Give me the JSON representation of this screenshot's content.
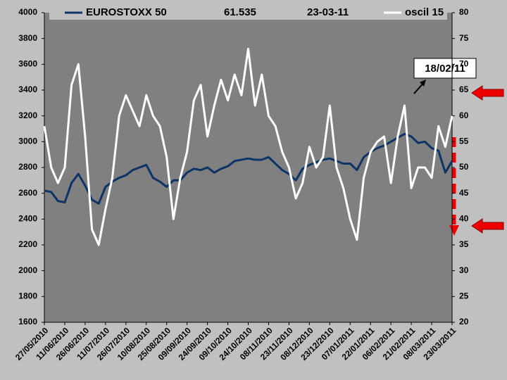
{
  "chart_data": {
    "type": "line",
    "categories": [
      "27/05/2010",
      null,
      null,
      "11/06/2010",
      null,
      null,
      "26/06/2010",
      null,
      null,
      "11/07/2010",
      null,
      null,
      "26/07/2010",
      null,
      null,
      "10/08/2010",
      null,
      null,
      "25/08/2010",
      null,
      null,
      "09/09/2010",
      null,
      null,
      "24/09/2010",
      null,
      null,
      "09/10/2010",
      null,
      null,
      "24/10/2010",
      null,
      null,
      "08/11/2010",
      null,
      null,
      "23/11/2010",
      null,
      null,
      "08/12/2010",
      null,
      null,
      "23/12/2010",
      null,
      null,
      "07/01/2011",
      null,
      null,
      "22/01/2011",
      null,
      null,
      "06/02/2011",
      null,
      null,
      "21/02/2011",
      null,
      null,
      "08/03/2011",
      null,
      null,
      "23/03/2011"
    ],
    "series": [
      {
        "name": "EUROSTOXX 50",
        "color": "#0d3466",
        "values": [
          2620,
          2610,
          2540,
          2530,
          2680,
          2750,
          2660,
          2550,
          2520,
          2650,
          2690,
          2720,
          2740,
          2780,
          2800,
          2820,
          2720,
          2690,
          2650,
          2700,
          2700,
          2760,
          2790,
          2780,
          2800,
          2760,
          2790,
          2810,
          2850,
          2860,
          2870,
          2860,
          2860,
          2880,
          2830,
          2780,
          2750,
          2700,
          2790,
          2820,
          2840,
          2860,
          2870,
          2850,
          2830,
          2830,
          2780,
          2880,
          2920,
          2950,
          2970,
          3000,
          3030,
          3060,
          3040,
          2990,
          3000,
          2950,
          2930,
          2760,
          2850
        ]
      },
      {
        "name": "oscil 15",
        "color": "#ffffff",
        "axis": "y2",
        "values": [
          58,
          50,
          47,
          50,
          66,
          70,
          56,
          38,
          35,
          42,
          48,
          60,
          64,
          61,
          58,
          64,
          60,
          58,
          52,
          40,
          48,
          53,
          63,
          66,
          56,
          62,
          67,
          63,
          68,
          64,
          73,
          62,
          68,
          60,
          58,
          53,
          50,
          44,
          47,
          54,
          50,
          52,
          62,
          50,
          46,
          40,
          36,
          48,
          53,
          55,
          56,
          47,
          56,
          62,
          46,
          50,
          50,
          48,
          58,
          54,
          60
        ]
      }
    ],
    "ylim": [
      1600,
      4000
    ],
    "yticks": [
      1600,
      1800,
      2000,
      2200,
      2400,
      2600,
      2800,
      3000,
      3200,
      3400,
      3600,
      3800,
      4000
    ],
    "y2lim": [
      20,
      80
    ],
    "y2ticks": [
      20,
      25,
      30,
      35,
      40,
      45,
      50,
      55,
      60,
      65,
      70,
      75,
      80
    ],
    "annotations": [
      "61.535",
      "23-03-11",
      "18/02/11"
    ],
    "grid": false
  }
}
